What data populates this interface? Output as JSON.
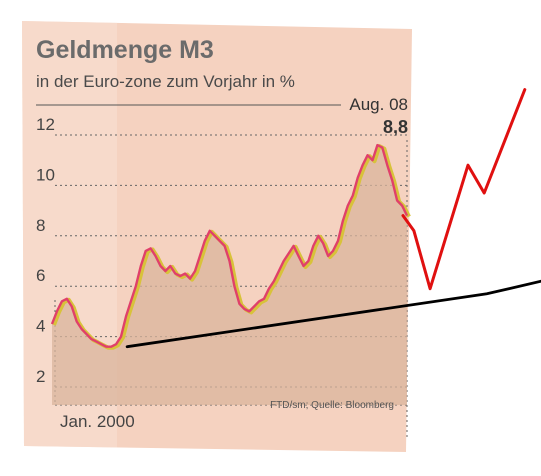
{
  "chart_data": {
    "type": "line",
    "title": "Geldmenge M3",
    "subtitle": "in der Euro-zone zum Vorjahr in %",
    "last_label": "Aug. 08",
    "last_value": "8,8",
    "x_start_label": "Jan. 2000",
    "source": "FTD/sm; Quelle: Bloomberg",
    "y_ticks": [
      2,
      4,
      6,
      8,
      10,
      12
    ],
    "ylim": [
      1.5,
      13
    ],
    "grid": true,
    "series": [
      {
        "values": [
          4.5,
          5.0,
          5.4,
          5.5,
          5.2,
          4.6,
          4.3,
          4.1,
          3.9,
          3.8,
          3.7,
          3.6,
          3.6,
          3.7,
          4.0,
          4.8,
          5.4,
          6.0,
          6.8,
          7.4,
          7.5,
          7.2,
          6.8,
          6.6,
          6.8,
          6.5,
          6.4,
          6.5,
          6.3,
          6.6,
          7.2,
          7.8,
          8.2,
          8.0,
          7.8,
          7.6,
          7.0,
          6.0,
          5.3,
          5.1,
          5.0,
          5.2,
          5.4,
          5.5,
          5.9,
          6.2,
          6.6,
          7.0,
          7.3,
          7.6,
          7.2,
          6.8,
          7.0,
          7.6,
          8.0,
          7.7,
          7.2,
          7.4,
          7.8,
          8.6,
          9.2,
          9.6,
          10.3,
          10.8,
          11.2,
          11.0,
          11.6,
          11.5,
          10.8,
          10.2,
          9.4,
          9.2,
          8.8
        ]
      }
    ],
    "annotations": {
      "trendline": [
        [
          0.235,
          3.6
        ],
        [
          0.9,
          5.7
        ],
        [
          1.0,
          6.2
        ]
      ],
      "red_projection": [
        [
          0.745,
          8.8
        ],
        [
          0.765,
          8.2
        ],
        [
          0.795,
          5.9
        ],
        [
          0.865,
          10.8
        ],
        [
          0.895,
          9.7
        ],
        [
          0.97,
          13.8
        ]
      ]
    }
  }
}
